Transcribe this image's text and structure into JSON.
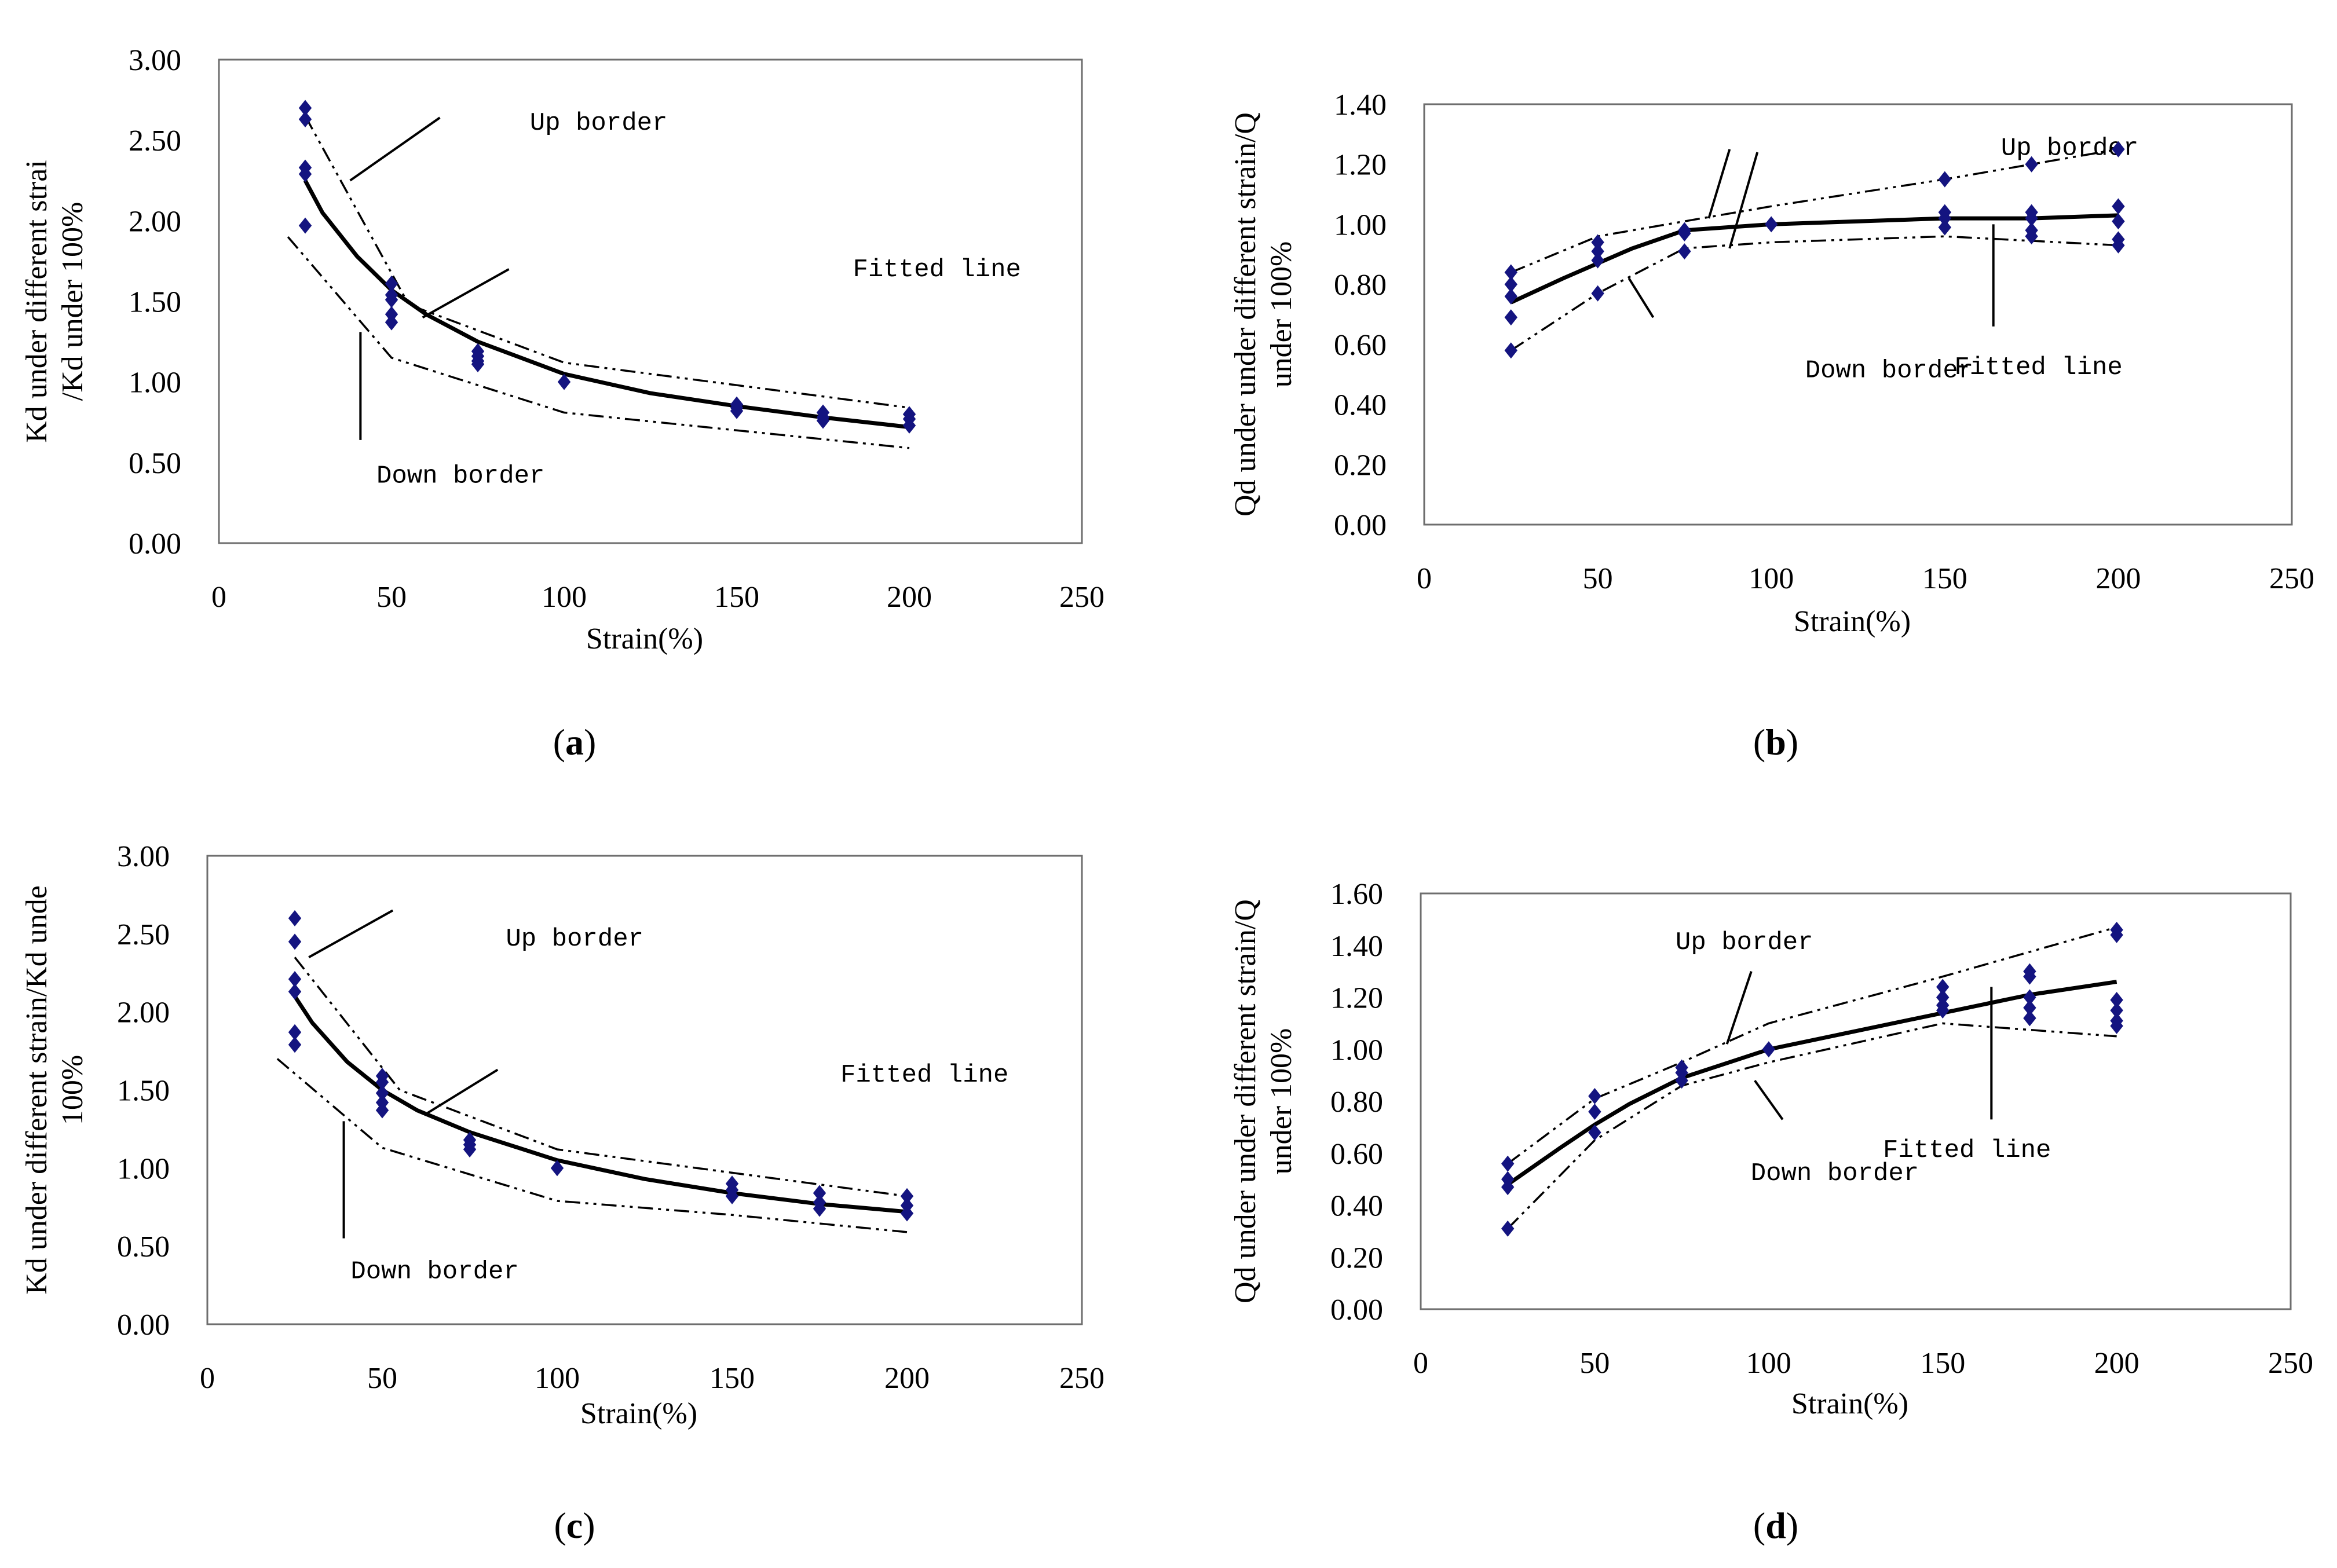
{
  "colors": {
    "marker": "#141480",
    "line": "#000000",
    "frame": "#6e6e6e"
  },
  "chart_data": [
    {
      "id": "a",
      "type": "scatter",
      "caption_letter": "a",
      "xlabel": "Strain(%)",
      "ylabel_lines": [
        "Kd under different strai",
        "/Kd under 100%"
      ],
      "xlim": [
        0,
        250
      ],
      "ylim": [
        0,
        3.0
      ],
      "xticks": [
        "0",
        "50",
        "100",
        "150",
        "200",
        "250"
      ],
      "yticks": [
        "0.00",
        "0.50",
        "1.00",
        "1.50",
        "2.00",
        "2.50",
        "3.00"
      ],
      "points": [
        [
          25,
          2.7
        ],
        [
          25,
          2.63
        ],
        [
          25,
          2.33
        ],
        [
          25,
          2.29
        ],
        [
          25,
          1.97
        ],
        [
          50,
          1.61
        ],
        [
          50,
          1.54
        ],
        [
          50,
          1.51
        ],
        [
          50,
          1.42
        ],
        [
          50,
          1.37
        ],
        [
          75,
          1.19
        ],
        [
          75,
          1.16
        ],
        [
          75,
          1.13
        ],
        [
          75,
          1.11
        ],
        [
          100,
          1.0
        ],
        [
          150,
          0.86
        ],
        [
          150,
          0.84
        ],
        [
          150,
          0.82
        ],
        [
          175,
          0.81
        ],
        [
          175,
          0.78
        ],
        [
          175,
          0.76
        ],
        [
          200,
          0.8
        ],
        [
          200,
          0.77
        ],
        [
          200,
          0.73
        ]
      ],
      "series": [
        {
          "name": "Fitted line",
          "x": [
            25,
            30,
            40,
            50,
            60,
            75,
            100,
            125,
            150,
            175,
            200
          ],
          "y": [
            2.25,
            2.05,
            1.78,
            1.57,
            1.42,
            1.25,
            1.05,
            0.93,
            0.85,
            0.78,
            0.72
          ]
        },
        {
          "name": "Up border",
          "x": [
            25,
            55,
            100,
            150,
            200
          ],
          "y": [
            2.65,
            1.48,
            1.12,
            0.98,
            0.84
          ]
        },
        {
          "name": "Down border",
          "x": [
            20,
            50,
            100,
            150,
            200
          ],
          "y": [
            1.9,
            1.15,
            0.81,
            0.7,
            0.59
          ]
        }
      ],
      "annotations": [
        {
          "text": "Up border",
          "tx": 110,
          "ty": 2.62,
          "lx1": 64,
          "ly1": 2.64,
          "lx2": 38,
          "ly2": 2.25
        },
        {
          "text": "Fitted line",
          "tx": 208,
          "ty": 1.71,
          "lx1": 84,
          "ly1": 1.7,
          "lx2": 59,
          "ly2": 1.4
        },
        {
          "text": "Down border",
          "tx": 70,
          "ty": 0.43,
          "lx1": 41,
          "ly1": 1.31,
          "lx2": 41,
          "ly2": 0.64
        }
      ]
    },
    {
      "id": "b",
      "type": "scatter",
      "caption_letter": "b",
      "xlabel": "Strain(%)",
      "ylabel_lines": [
        "Qd under under different strain/Q",
        "under 100%"
      ],
      "xlim": [
        0,
        250
      ],
      "ylim": [
        0,
        1.4
      ],
      "xticks": [
        "0",
        "50",
        "100",
        "150",
        "200",
        "250"
      ],
      "yticks": [
        "0.00",
        "0.20",
        "0.40",
        "0.60",
        "0.80",
        "1.00",
        "1.20",
        "1.40"
      ],
      "points": [
        [
          25,
          0.84
        ],
        [
          25,
          0.8
        ],
        [
          25,
          0.76
        ],
        [
          25,
          0.69
        ],
        [
          25,
          0.58
        ],
        [
          50,
          0.94
        ],
        [
          50,
          0.91
        ],
        [
          50,
          0.88
        ],
        [
          50,
          0.77
        ],
        [
          75,
          0.98
        ],
        [
          75,
          0.97
        ],
        [
          75,
          0.91
        ],
        [
          100,
          1.0
        ],
        [
          150,
          1.15
        ],
        [
          150,
          1.04
        ],
        [
          150,
          1.02
        ],
        [
          150,
          0.99
        ],
        [
          175,
          1.2
        ],
        [
          175,
          1.04
        ],
        [
          175,
          1.02
        ],
        [
          175,
          0.98
        ],
        [
          175,
          0.96
        ],
        [
          200,
          1.25
        ],
        [
          200,
          1.06
        ],
        [
          200,
          1.01
        ],
        [
          200,
          0.95
        ],
        [
          200,
          0.93
        ]
      ],
      "series": [
        {
          "name": "Fitted line",
          "x": [
            25,
            40,
            50,
            60,
            75,
            100,
            125,
            150,
            175,
            200
          ],
          "y": [
            0.74,
            0.82,
            0.87,
            0.92,
            0.98,
            1.0,
            1.01,
            1.02,
            1.02,
            1.03
          ]
        },
        {
          "name": "Up border",
          "x": [
            25,
            50,
            75,
            100,
            150,
            200
          ],
          "y": [
            0.84,
            0.96,
            1.01,
            1.06,
            1.15,
            1.25
          ]
        },
        {
          "name": "Down border",
          "x": [
            25,
            50,
            75,
            100,
            150,
            200
          ],
          "y": [
            0.58,
            0.77,
            0.92,
            0.94,
            0.96,
            0.93
          ]
        }
      ],
      "annotations": [
        {
          "text": "Up border",
          "tx": 186,
          "ty": 1.26,
          "lx1": 88,
          "ly1": 1.25,
          "lx2": 82,
          "ly2": 1.02
        },
        {
          "text": "Up border",
          "tx": 186,
          "ty": 1.26,
          "lx1": 96,
          "ly1": 1.24,
          "lx2": 88,
          "ly2": 0.92
        },
        {
          "text": "Down border",
          "tx": 134,
          "ty": 0.52,
          "lx1": 66,
          "ly1": 0.69,
          "lx2": 59,
          "ly2": 0.82
        },
        {
          "text": "Fitted line",
          "tx": 177,
          "ty": 0.53,
          "lx1": 164,
          "ly1": 1.0,
          "lx2": 164,
          "ly2": 0.66
        }
      ]
    },
    {
      "id": "c",
      "type": "scatter",
      "caption_letter": "c",
      "xlabel": "Strain(%)",
      "ylabel_lines": [
        "Kd under different strain/Kd unde",
        "100%"
      ],
      "xlim": [
        0,
        250
      ],
      "ylim": [
        0,
        3.0
      ],
      "xticks": [
        "0",
        "50",
        "100",
        "150",
        "200",
        "250"
      ],
      "yticks": [
        "0.00",
        "0.50",
        "1.00",
        "1.50",
        "2.00",
        "2.50",
        "3.00"
      ],
      "points": [
        [
          25,
          2.6
        ],
        [
          25,
          2.45
        ],
        [
          25,
          2.21
        ],
        [
          25,
          2.13
        ],
        [
          25,
          1.87
        ],
        [
          25,
          1.79
        ],
        [
          50,
          1.59
        ],
        [
          50,
          1.55
        ],
        [
          50,
          1.48
        ],
        [
          50,
          1.42
        ],
        [
          50,
          1.37
        ],
        [
          75,
          1.18
        ],
        [
          75,
          1.15
        ],
        [
          75,
          1.12
        ],
        [
          100,
          1.0
        ],
        [
          150,
          0.9
        ],
        [
          150,
          0.86
        ],
        [
          150,
          0.82
        ],
        [
          175,
          0.84
        ],
        [
          175,
          0.78
        ],
        [
          175,
          0.74
        ],
        [
          200,
          0.82
        ],
        [
          200,
          0.76
        ],
        [
          200,
          0.71
        ]
      ],
      "series": [
        {
          "name": "Fitted line",
          "x": [
            25,
            30,
            40,
            50,
            60,
            75,
            100,
            125,
            150,
            175,
            200
          ],
          "y": [
            2.1,
            1.93,
            1.68,
            1.5,
            1.37,
            1.23,
            1.05,
            0.93,
            0.84,
            0.77,
            0.72
          ]
        },
        {
          "name": "Up border",
          "x": [
            25,
            55,
            100,
            150,
            200
          ],
          "y": [
            2.35,
            1.5,
            1.12,
            0.97,
            0.82
          ]
        },
        {
          "name": "Down border",
          "x": [
            20,
            50,
            100,
            150,
            200
          ],
          "y": [
            1.7,
            1.13,
            0.79,
            0.7,
            0.59
          ]
        }
      ],
      "annotations": [
        {
          "text": "Up border",
          "tx": 105,
          "ty": 2.48,
          "lx1": 53,
          "ly1": 2.65,
          "lx2": 29,
          "ly2": 2.35
        },
        {
          "text": "Fitted line",
          "tx": 205,
          "ty": 1.61,
          "lx1": 83,
          "ly1": 1.63,
          "lx2": 62,
          "ly2": 1.34
        },
        {
          "text": "Down border",
          "tx": 65,
          "ty": 0.35,
          "lx1": 39,
          "ly1": 1.3,
          "lx2": 39,
          "ly2": 0.55
        }
      ]
    },
    {
      "id": "d",
      "type": "scatter",
      "caption_letter": "d",
      "xlabel": "Strain(%)",
      "ylabel_lines": [
        "Qd under under different strain/Q",
        "under 100%"
      ],
      "xlim": [
        0,
        250
      ],
      "ylim": [
        0,
        1.6
      ],
      "xticks": [
        "0",
        "50",
        "100",
        "150",
        "200",
        "250"
      ],
      "yticks": [
        "0.00",
        "0.20",
        "0.40",
        "0.60",
        "0.80",
        "1.00",
        "1.20",
        "1.40",
        "1.60"
      ],
      "points": [
        [
          25,
          0.56
        ],
        [
          25,
          0.5
        ],
        [
          25,
          0.47
        ],
        [
          25,
          0.31
        ],
        [
          50,
          0.82
        ],
        [
          50,
          0.76
        ],
        [
          50,
          0.68
        ],
        [
          75,
          0.93
        ],
        [
          75,
          0.91
        ],
        [
          75,
          0.88
        ],
        [
          100,
          1.0
        ],
        [
          150,
          1.24
        ],
        [
          150,
          1.2
        ],
        [
          150,
          1.17
        ],
        [
          150,
          1.15
        ],
        [
          175,
          1.3
        ],
        [
          175,
          1.28
        ],
        [
          175,
          1.2
        ],
        [
          175,
          1.16
        ],
        [
          175,
          1.12
        ],
        [
          200,
          1.46
        ],
        [
          200,
          1.44
        ],
        [
          200,
          1.19
        ],
        [
          200,
          1.15
        ],
        [
          200,
          1.11
        ],
        [
          200,
          1.09
        ]
      ],
      "series": [
        {
          "name": "Fitted line",
          "x": [
            25,
            40,
            50,
            60,
            75,
            100,
            125,
            150,
            175,
            200
          ],
          "y": [
            0.48,
            0.62,
            0.71,
            0.79,
            0.89,
            1.0,
            1.07,
            1.14,
            1.21,
            1.26
          ]
        },
        {
          "name": "Up border",
          "x": [
            25,
            50,
            75,
            100,
            150,
            200
          ],
          "y": [
            0.56,
            0.81,
            0.95,
            1.1,
            1.28,
            1.47
          ]
        },
        {
          "name": "Down border",
          "x": [
            25,
            50,
            75,
            100,
            150,
            200
          ],
          "y": [
            0.31,
            0.65,
            0.86,
            0.95,
            1.1,
            1.05
          ]
        }
      ],
      "annotations": [
        {
          "text": "Up border",
          "tx": 93,
          "ty": 1.42,
          "lx1": 95,
          "ly1": 1.3,
          "lx2": 88,
          "ly2": 1.02
        },
        {
          "text": "Down border",
          "tx": 119,
          "ty": 0.53,
          "lx1": 96,
          "ly1": 0.88,
          "lx2": 104,
          "ly2": 0.73
        },
        {
          "text": "Fitted line",
          "tx": 157,
          "ty": 0.62,
          "lx1": 164,
          "ly1": 1.24,
          "lx2": 164,
          "ly2": 0.73
        }
      ]
    }
  ]
}
